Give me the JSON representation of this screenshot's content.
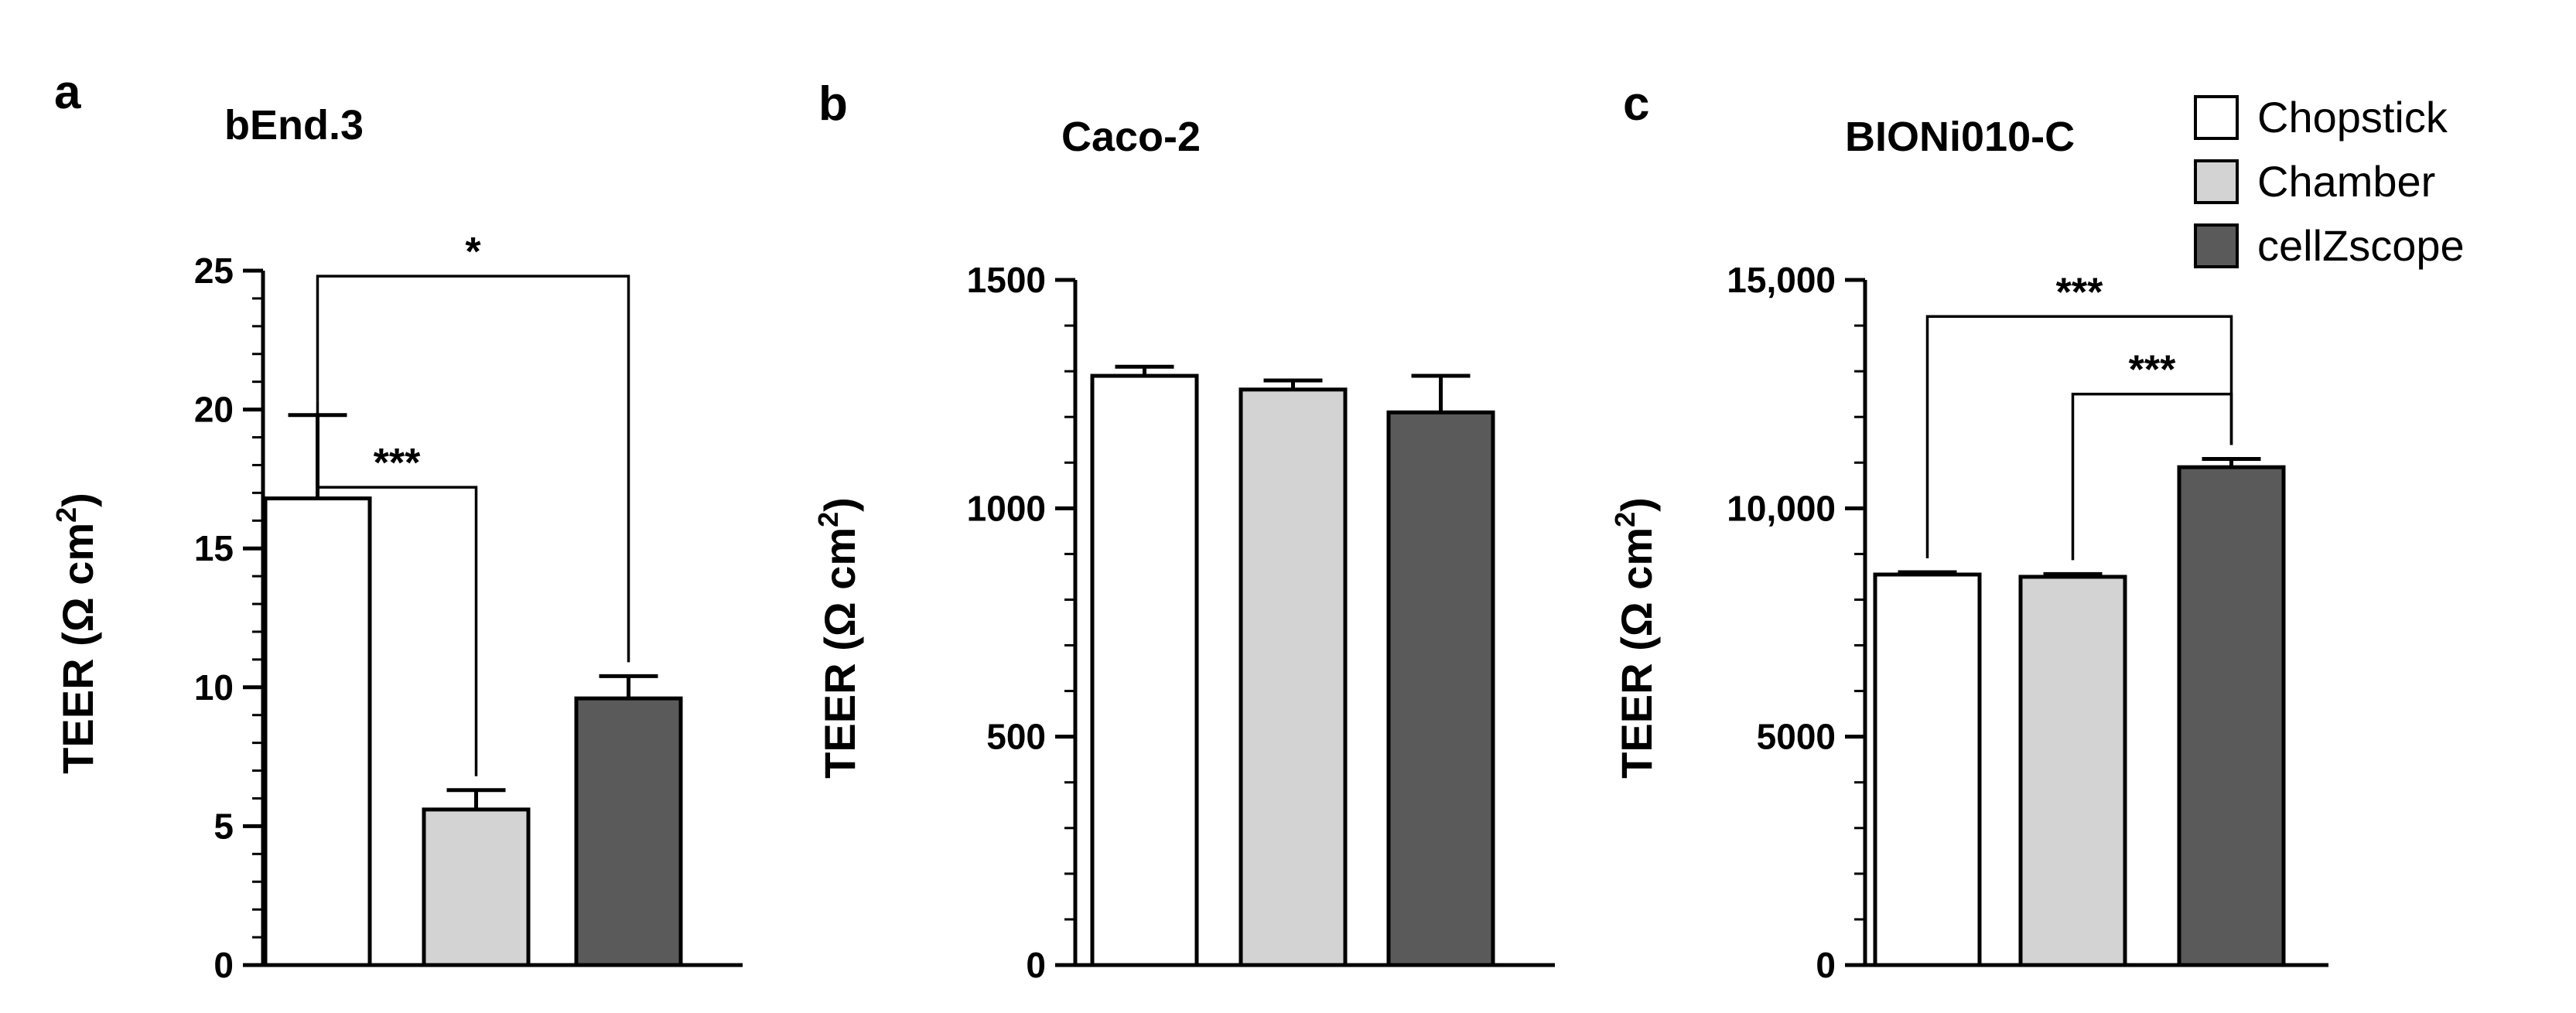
{
  "chart_data": [
    {
      "type": "bar",
      "panel": "a",
      "title": "bEnd.3",
      "ylabel": {
        "main": "TEER (Ω cm",
        "superscript": "2",
        "close": ")"
      },
      "ylim": [
        0,
        25
      ],
      "yticks": [
        0,
        5,
        10,
        15,
        20,
        25
      ],
      "ytick_labels": [
        "0",
        "5",
        "10",
        "15",
        "20",
        "25"
      ],
      "minor_tick_step": 1,
      "categories": [
        "Chopstick",
        "Chamber",
        "cellZscope"
      ],
      "values": [
        16.8,
        5.6,
        9.6
      ],
      "errors": [
        3.0,
        0.7,
        0.8
      ],
      "significance": [
        {
          "from": 0,
          "to": 1,
          "label": "***",
          "level": 17.2
        },
        {
          "from": 0,
          "to": 2,
          "label": "*",
          "level": 24.8
        }
      ]
    },
    {
      "type": "bar",
      "panel": "b",
      "title": "Caco-2",
      "ylabel": {
        "main": "TEER (Ω cm",
        "superscript": "2",
        "close": ")"
      },
      "ylim": [
        0,
        1500
      ],
      "yticks": [
        0,
        500,
        1000,
        1500
      ],
      "ytick_labels": [
        "0",
        "500",
        "1000",
        "1500"
      ],
      "minor_tick_step": 100,
      "categories": [
        "Chopstick",
        "Chamber",
        "cellZscope"
      ],
      "values": [
        1290,
        1260,
        1210
      ],
      "errors": [
        20,
        20,
        80
      ],
      "significance": []
    },
    {
      "type": "bar",
      "panel": "c",
      "title": "BIONi010-C",
      "ylabel": {
        "main": "TEER (Ω cm",
        "superscript": "2",
        "close": ")"
      },
      "ylim": [
        0,
        15000
      ],
      "yticks": [
        0,
        5000,
        10000,
        15000
      ],
      "ytick_labels": [
        "0",
        "5000",
        "10,000",
        "15,000"
      ],
      "minor_tick_step": 1000,
      "categories": [
        "Chopstick",
        "Chamber",
        "cellZscope"
      ],
      "values": [
        8550,
        8500,
        10900
      ],
      "errors": [
        50,
        60,
        180
      ],
      "significance": [
        {
          "from": 0,
          "to": 2,
          "label": "***",
          "level": 14200
        },
        {
          "from": 1,
          "to": 2,
          "label": "***",
          "level": 12500
        }
      ]
    }
  ],
  "legend": {
    "placement": "top-right",
    "items": [
      {
        "label": "Chopstick",
        "color": "#ffffff"
      },
      {
        "label": "Chamber",
        "color": "#d3d3d3"
      },
      {
        "label": "cellZscope",
        "color": "#5a5a5a"
      }
    ]
  },
  "colors": {
    "Chopstick": "#ffffff",
    "Chamber": "#d3d3d3",
    "cellZscope": "#5a5a5a",
    "outline": "#000000"
  }
}
